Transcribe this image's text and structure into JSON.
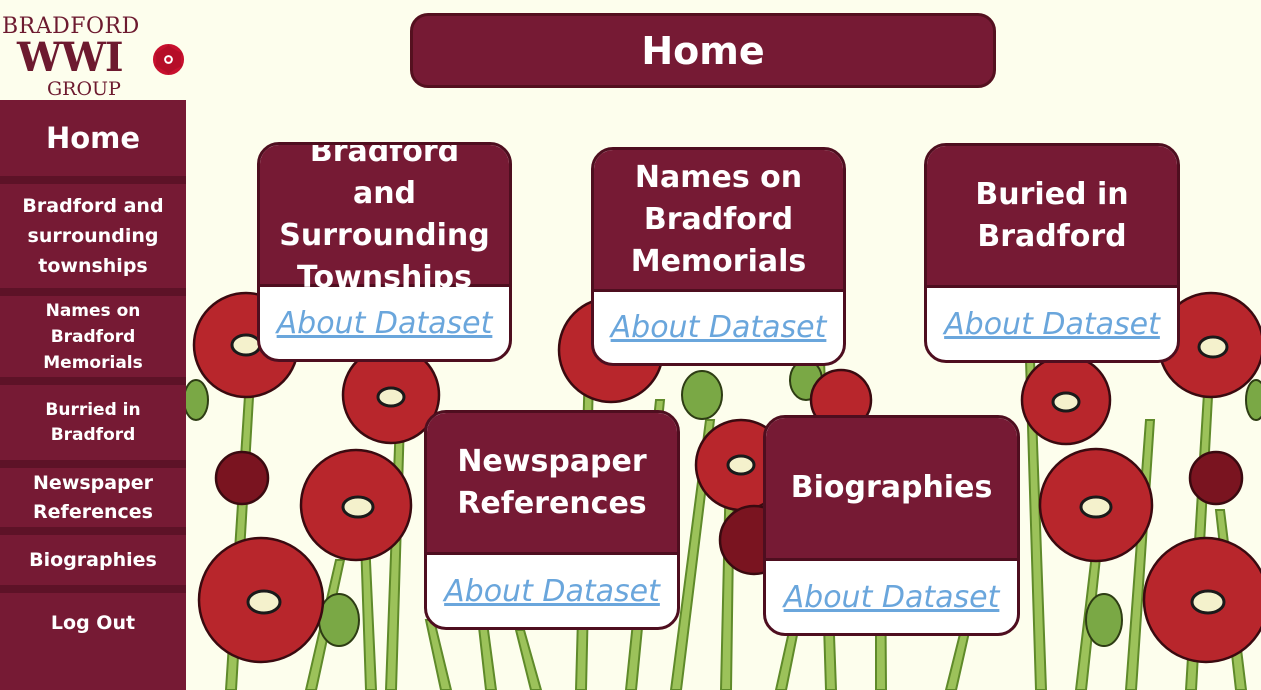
{
  "logo": {
    "line1": "BRADFORD",
    "line2": "WWI",
    "line3": "GROUP"
  },
  "colors": {
    "maroon": "#761a34",
    "dark_border": "#4e0e1f",
    "link": "#6aa6dc",
    "background": "#fdfeed"
  },
  "sidebar": {
    "items": [
      {
        "label": "Home"
      },
      {
        "label": "Bradford and surrounding townships"
      },
      {
        "label": "Names on Bradford Memorials"
      },
      {
        "label": "Burried in Bradford"
      },
      {
        "label": "Newspaper References"
      },
      {
        "label": "Biographies"
      },
      {
        "label": "Log Out"
      }
    ]
  },
  "page_title": "Home",
  "cards": [
    {
      "title": "Bradford and Surrounding Townships",
      "link": "About Dataset"
    },
    {
      "title": "Names on Bradford Memorials",
      "link": "About Dataset"
    },
    {
      "title": "Buried in Bradford",
      "link": "About Dataset"
    },
    {
      "title": "Newspaper References",
      "link": "About Dataset"
    },
    {
      "title": "Biographies",
      "link": "About Dataset"
    }
  ]
}
